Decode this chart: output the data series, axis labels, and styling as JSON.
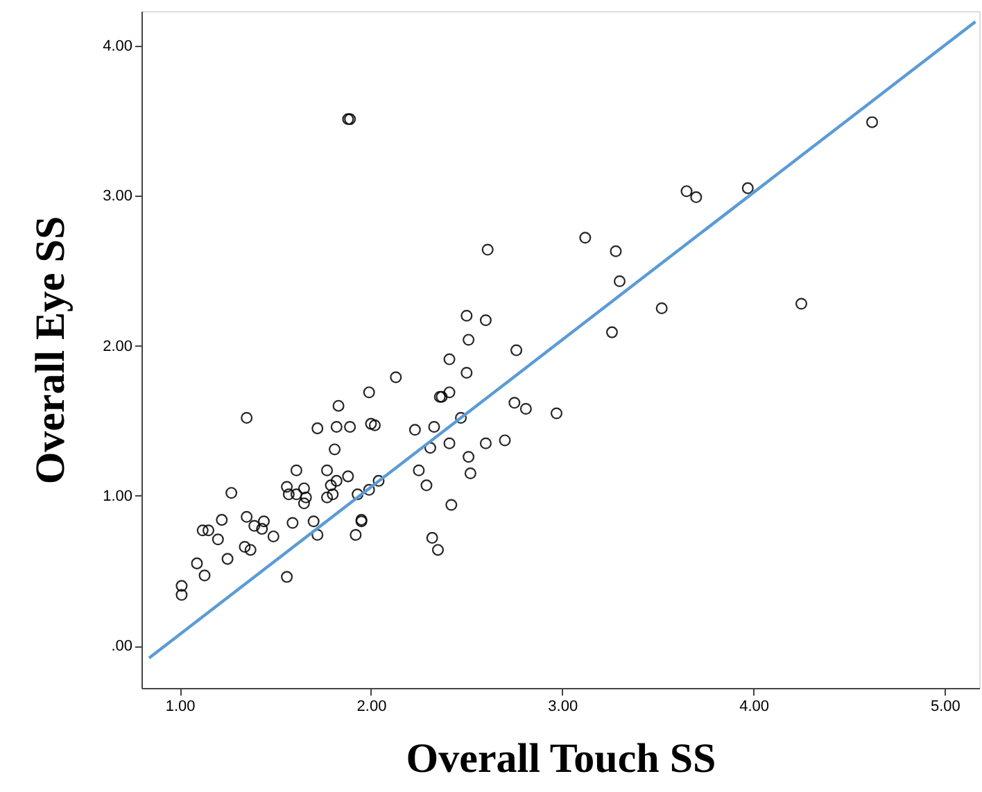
{
  "chart_data": {
    "type": "scatter",
    "xlabel": "Overall Touch SS",
    "ylabel": "Overall Eye SS",
    "xlim": [
      0.8,
      5.18
    ],
    "ylim": [
      -0.28,
      4.23
    ],
    "xticks": [
      {
        "value": 1,
        "label": "1.00"
      },
      {
        "value": 2,
        "label": "2.00"
      },
      {
        "value": 3,
        "label": "3.00"
      },
      {
        "value": 4,
        "label": "4.00"
      },
      {
        "value": 5,
        "label": "5.00"
      }
    ],
    "yticks": [
      {
        "value": 0,
        "label": ".00"
      },
      {
        "value": 1,
        "label": "1.00"
      },
      {
        "value": 2,
        "label": "2.00"
      },
      {
        "value": 3,
        "label": "3.00"
      },
      {
        "value": 4,
        "label": "4.00"
      }
    ],
    "grid": false,
    "series": [
      {
        "color": "#000000",
        "marker": "circle",
        "x": [
          1.35,
          1.99,
          1.83,
          1.72,
          1.82,
          1.89,
          2.0,
          2.02,
          2.23,
          1.81,
          1.61,
          1.77,
          1.88,
          2.25,
          1.27,
          1.56,
          1.57,
          1.65,
          1.61,
          1.66,
          1.65,
          1.79,
          1.82,
          1.8,
          1.77,
          1.93,
          1.99,
          2.04,
          1.22,
          1.12,
          1.15,
          1.2,
          1.35,
          1.39,
          1.44,
          1.43,
          1.49,
          1.59,
          1.7,
          1.72,
          1.95,
          1.95,
          1.92,
          1.34,
          1.37,
          1.25,
          1.09,
          1.13,
          1.56,
          1.01,
          1.01,
          2.61,
          2.5,
          2.6,
          2.51,
          2.76,
          2.41,
          2.5,
          2.13,
          2.36,
          2.37,
          2.41,
          2.75,
          2.81,
          2.97,
          2.47,
          2.33,
          2.31,
          2.41,
          2.6,
          2.7,
          2.51,
          2.52,
          2.29,
          2.42,
          2.32,
          2.35,
          4.62,
          3.65,
          3.7,
          3.97,
          3.12,
          3.28,
          3.3,
          3.52,
          4.25,
          3.26,
          1.88,
          1.89
        ],
        "values": [
          1.52,
          1.69,
          1.6,
          1.45,
          1.46,
          1.46,
          1.48,
          1.47,
          1.44,
          1.31,
          1.17,
          1.17,
          1.13,
          1.17,
          1.02,
          1.06,
          1.01,
          1.05,
          1.01,
          0.99,
          0.95,
          1.07,
          1.1,
          1.01,
          0.99,
          1.01,
          1.04,
          1.1,
          0.84,
          0.77,
          0.77,
          0.71,
          0.86,
          0.8,
          0.83,
          0.78,
          0.73,
          0.82,
          0.83,
          0.74,
          0.84,
          0.83,
          0.74,
          0.66,
          0.64,
          0.58,
          0.55,
          0.47,
          0.46,
          0.4,
          0.34,
          2.64,
          2.2,
          2.17,
          2.04,
          1.97,
          1.91,
          1.82,
          1.79,
          1.66,
          1.66,
          1.69,
          1.62,
          1.58,
          1.55,
          1.52,
          1.46,
          1.32,
          1.35,
          1.35,
          1.37,
          1.26,
          1.15,
          1.07,
          0.94,
          0.72,
          0.64,
          3.49,
          3.03,
          2.99,
          3.05,
          2.72,
          2.63,
          2.43,
          2.25,
          2.28,
          2.09,
          3.51,
          3.51
        ]
      },
      {
        "type": "line",
        "color": "#5b9bd5",
        "marker": "none",
        "line_style": "solid",
        "x": [
          0.84,
          5.16
        ],
        "values": [
          -0.08,
          4.16
        ]
      }
    ]
  }
}
